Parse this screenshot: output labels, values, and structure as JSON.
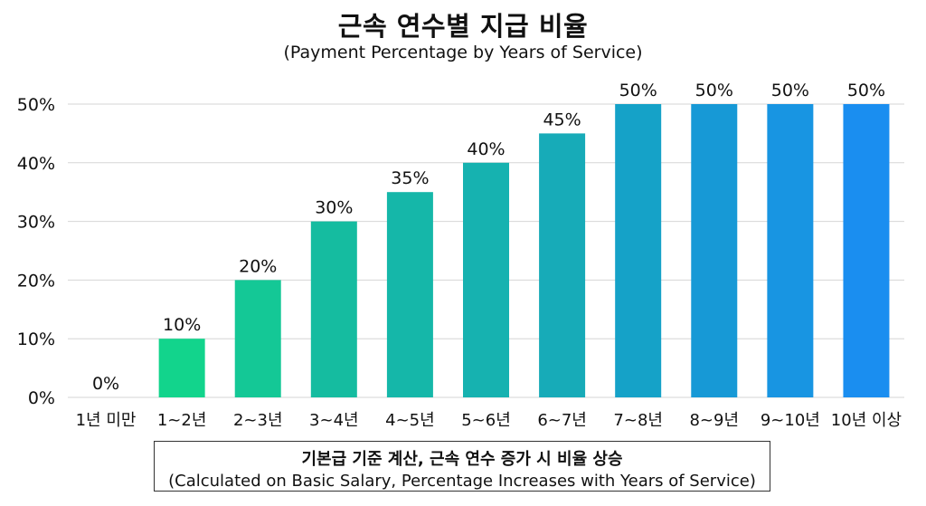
{
  "chart_data": {
    "type": "bar",
    "title": "근속 연수별 지급 비율",
    "subtitle": "(Payment Percentage by Years of Service)",
    "categories": [
      "1년 미만",
      "1~2년",
      "2~3년",
      "3~4년",
      "4~5년",
      "5~6년",
      "6~7년",
      "7~8년",
      "8~9년",
      "9~10년",
      "10년 이상"
    ],
    "values": [
      0,
      10,
      20,
      30,
      35,
      40,
      45,
      50,
      50,
      50,
      50
    ],
    "value_labels": [
      "0%",
      "10%",
      "20%",
      "30%",
      "35%",
      "40%",
      "45%",
      "50%",
      "50%",
      "50%",
      "50%"
    ],
    "ylim": [
      0,
      50
    ],
    "yticks": [
      0,
      10,
      20,
      30,
      40,
      50
    ],
    "ytick_labels": [
      "0%",
      "10%",
      "20%",
      "30%",
      "40%",
      "50%"
    ],
    "grid": true,
    "colors": [
      "#12d48c",
      "#12d48c",
      "#14c896",
      "#15bca0",
      "#15b7a9",
      "#16b2b0",
      "#17abb8",
      "#15a2c8",
      "#1799d6",
      "#1895e2",
      "#1a8ef0"
    ],
    "grid_color": "#d6d6d6"
  },
  "note": {
    "line1": "기본급 기준 계산, 근속 연수 증가 시 비율 상승",
    "line2": "(Calculated on Basic Salary, Percentage Increases with Years of Service)"
  }
}
